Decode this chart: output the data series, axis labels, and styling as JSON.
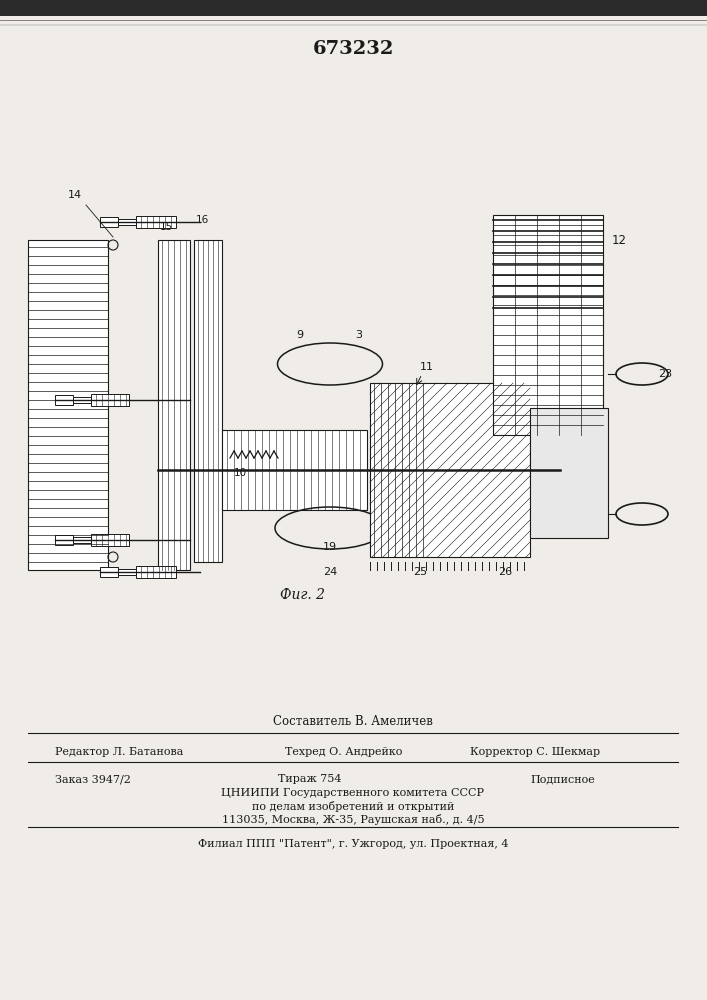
{
  "patent_number": "673232",
  "bg_color": "#f0ede8",
  "line_color": "#1a1a1a",
  "footer_composer": "Составитель В. Амеличев",
  "footer_line1_left": "Редактор Л. Батанова",
  "footer_line1_mid": "Техред О. Андрейко",
  "footer_line1_right": "Корректор С. Шекмар",
  "footer_line2_left": "Заказ 3947/2",
  "footer_line2_mid": "Тираж 754",
  "footer_line2_right": "Подписное",
  "footer_line3": "ЦНИИПИ Государственного комитета СССР",
  "footer_line4": "по делам изобретений и открытий",
  "footer_line5": "113035, Москва, Ж-35, Раушская наб., д. 4/5",
  "footer_line6": "Филиал ППП \"Патент\", г. Ужгород, ул. Проектная, 4",
  "fig_label": "Фиг. 2"
}
